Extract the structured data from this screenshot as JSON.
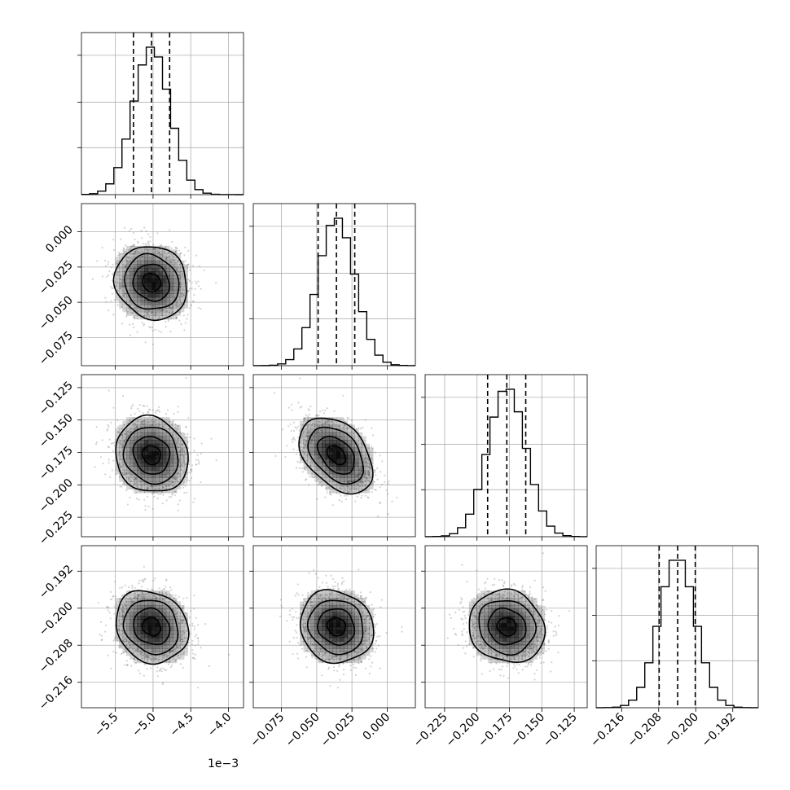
{
  "chart_data": {
    "type": "corner",
    "title": "",
    "parameters": [
      {
        "range": [
          -0.00595,
          -0.0038
        ],
        "ticks": [
          -0.0055,
          -0.005,
          -0.0045,
          -0.004
        ],
        "tick_labels": [
          "−5.5",
          "−5.0",
          "−4.5",
          "−4.0"
        ],
        "offset_text": "1e−3",
        "quantiles": [
          -0.00526,
          -0.00502,
          -0.00478
        ],
        "mean": -0.00502,
        "sd": 0.00024
      },
      {
        "range": [
          -0.095,
          0.02
        ],
        "ticks": [
          -0.075,
          -0.05,
          -0.025,
          0.0
        ],
        "tick_labels": [
          "−0.075",
          "−0.050",
          "−0.025",
          "0.000"
        ],
        "quantiles": [
          -0.049,
          -0.036,
          -0.023
        ],
        "mean": -0.036,
        "sd": 0.013
      },
      {
        "range": [
          -0.24,
          -0.115
        ],
        "ticks": [
          -0.225,
          -0.2,
          -0.175,
          -0.15,
          -0.125
        ],
        "tick_labels": [
          "−0.225",
          "−0.200",
          "−0.175",
          "−0.150",
          "−0.125"
        ],
        "quantiles": [
          -0.1918,
          -0.177,
          -0.1624
        ],
        "mean": -0.177,
        "sd": 0.0146
      },
      {
        "range": [
          -0.2215,
          -0.1865
        ],
        "ticks": [
          -0.216,
          -0.208,
          -0.2,
          -0.192
        ],
        "tick_labels": [
          "−0.216",
          "−0.208",
          "−0.200",
          "−0.192"
        ],
        "quantiles": [
          -0.2079,
          -0.2039,
          -0.2001
        ],
        "mean": -0.204,
        "sd": 0.0039
      }
    ],
    "correlations": [
      {
        "pair": [
          1,
          0
        ],
        "rho": -0.1
      },
      {
        "pair": [
          2,
          0
        ],
        "rho": -0.1
      },
      {
        "pair": [
          2,
          1
        ],
        "rho": -0.4
      },
      {
        "pair": [
          3,
          0
        ],
        "rho": -0.15
      },
      {
        "pair": [
          3,
          1
        ],
        "rho": -0.1
      },
      {
        "pair": [
          3,
          2
        ],
        "rho": -0.1
      }
    ],
    "histogram_bins": 20,
    "contour_levels": [
      0.118,
      0.393,
      0.675,
      0.865
    ],
    "grid": true,
    "colors": {
      "points": "#808080",
      "shade": "#000000",
      "lines": "#000000",
      "grid": "#b0b0b0"
    }
  }
}
